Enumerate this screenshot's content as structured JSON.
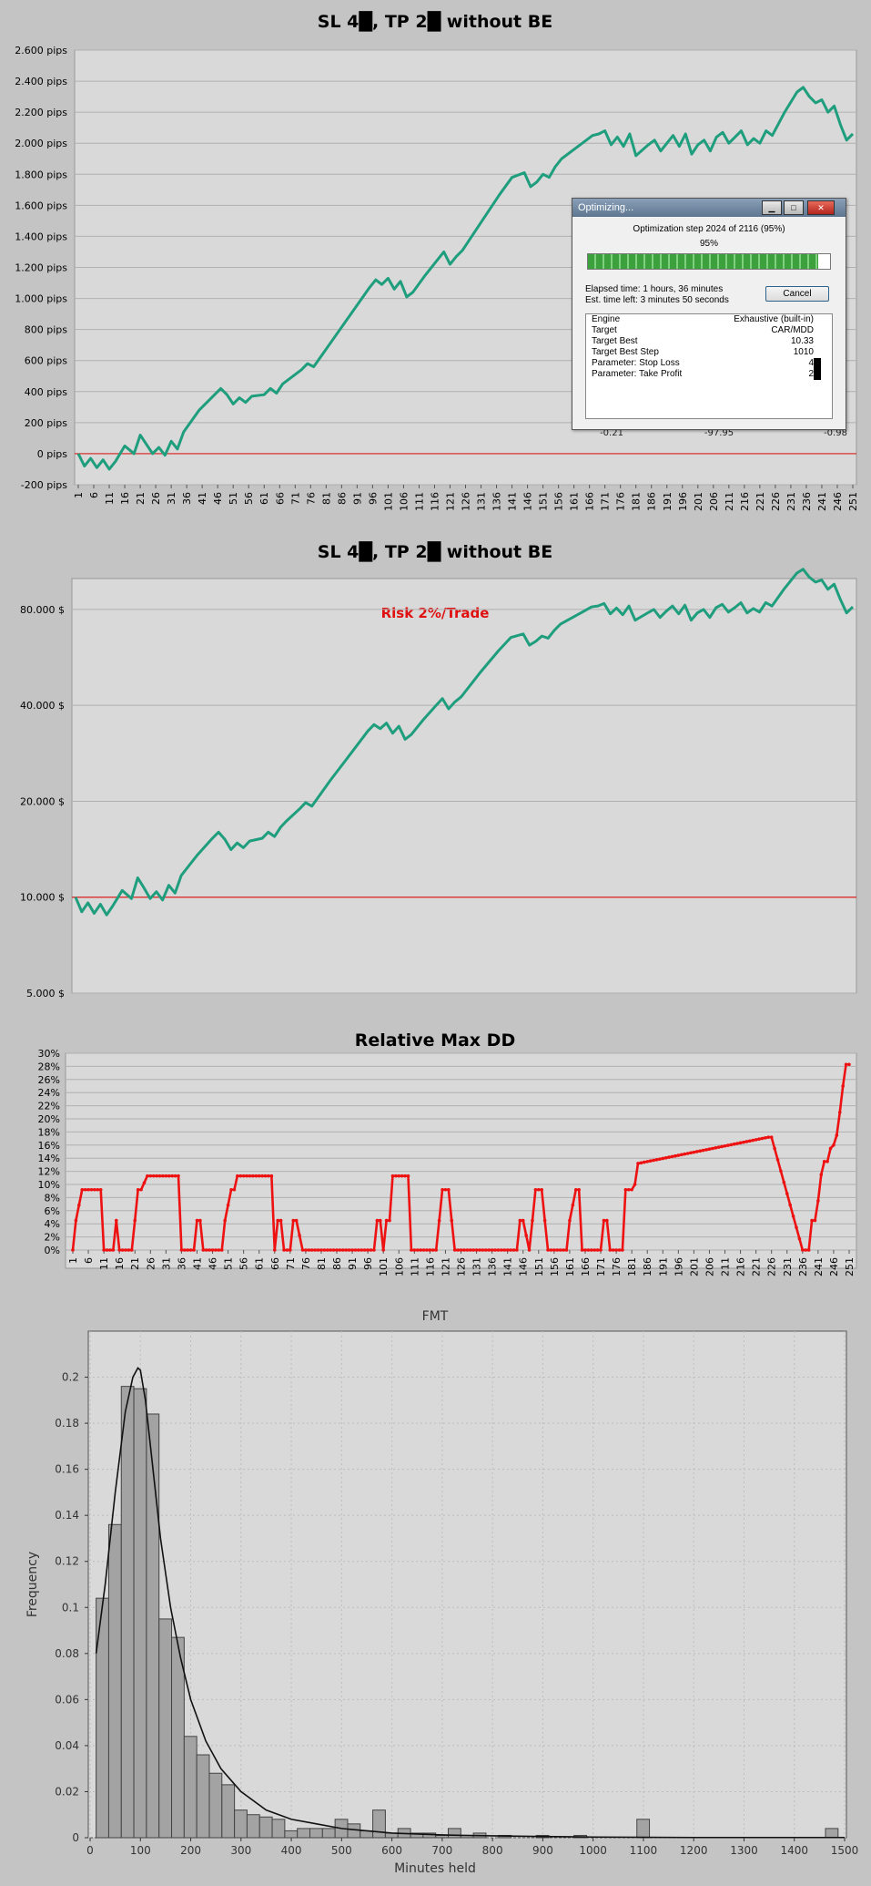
{
  "panels": {
    "pips": {
      "title": "SL 4█, TP 2█ without BE",
      "y_ticks": [
        "2.600 pips",
        "2.400 pips",
        "2.200 pips",
        "2.000 pips",
        "1.800 pips",
        "1.600 pips",
        "1.400 pips",
        "1.200 pips",
        "1.000 pips",
        "800 pips",
        "600 pips",
        "400 pips",
        "200 pips",
        "0 pips",
        "-200 pips"
      ]
    },
    "equity": {
      "title": "SL 4█, TP 2█ without BE",
      "annotation": "Risk 2%/Trade",
      "y_ticks": [
        "80.000 $",
        "40.000 $",
        "20.000 $",
        "10.000 $",
        "5.000 $"
      ]
    },
    "dd": {
      "title": "Relative Max DD",
      "y_ticks": [
        "30%",
        "28%",
        "26%",
        "24%",
        "22%",
        "20%",
        "18%",
        "16%",
        "14%",
        "12%",
        "10%",
        "8%",
        "6%",
        "4%",
        "2%",
        "0%"
      ]
    },
    "x_ticks": [
      "1",
      "6",
      "11",
      "16",
      "21",
      "26",
      "31",
      "36",
      "41",
      "46",
      "51",
      "56",
      "61",
      "66",
      "71",
      "76",
      "81",
      "86",
      "91",
      "96",
      "101",
      "106",
      "111",
      "116",
      "121",
      "126",
      "131",
      "136",
      "141",
      "146",
      "151",
      "156",
      "161",
      "166",
      "171",
      "176",
      "181",
      "186",
      "191",
      "196",
      "201",
      "206",
      "211",
      "216",
      "221",
      "226",
      "231",
      "236",
      "241",
      "246",
      "251"
    ]
  },
  "chart_data": [
    {
      "type": "line",
      "title": "SL 4█, TP 2█ without BE",
      "ylabel": "",
      "ylim": [
        -200,
        2600
      ],
      "grid": true,
      "x": [
        1,
        3,
        5,
        7,
        9,
        11,
        13,
        16,
        19,
        21,
        23,
        25,
        27,
        29,
        31,
        33,
        35,
        40,
        45,
        47,
        49,
        51,
        53,
        55,
        57,
        61,
        63,
        65,
        67,
        69,
        73,
        75,
        77,
        83,
        89,
        95,
        97,
        99,
        101,
        103,
        105,
        107,
        109,
        113,
        117,
        119,
        121,
        123,
        125,
        131,
        137,
        141,
        145,
        147,
        149,
        151,
        153,
        155,
        157,
        163,
        167,
        169,
        171,
        173,
        175,
        177,
        179,
        181,
        185,
        187,
        189,
        191,
        193,
        195,
        197,
        199,
        201,
        203,
        205,
        207,
        209,
        211,
        213,
        215,
        217,
        219,
        221,
        223,
        225,
        229,
        233,
        235,
        237,
        239,
        241,
        243,
        245,
        247,
        249,
        251
      ],
      "y": [
        0,
        -80,
        -30,
        -90,
        -40,
        -100,
        -50,
        50,
        0,
        120,
        60,
        0,
        40,
        -10,
        80,
        30,
        140,
        280,
        380,
        420,
        380,
        320,
        360,
        330,
        370,
        380,
        420,
        390,
        450,
        480,
        540,
        580,
        560,
        730,
        900,
        1070,
        1120,
        1090,
        1130,
        1060,
        1110,
        1010,
        1040,
        1150,
        1250,
        1300,
        1220,
        1270,
        1310,
        1490,
        1670,
        1780,
        1810,
        1720,
        1750,
        1800,
        1780,
        1850,
        1900,
        1990,
        2050,
        2060,
        2080,
        1990,
        2040,
        1980,
        2060,
        1920,
        1990,
        2020,
        1950,
        2000,
        2050,
        1980,
        2060,
        1930,
        1990,
        2020,
        1950,
        2040,
        2070,
        2000,
        2040,
        2080,
        1990,
        2030,
        2000,
        2080,
        2050,
        2200,
        2330,
        2360,
        2300,
        2260,
        2280,
        2200,
        2240,
        2120,
        2020,
        2060
      ],
      "baseline": 0
    },
    {
      "type": "line",
      "title": "SL 4█, TP 2█ without BE",
      "annotation": "Risk 2%/Trade",
      "yscale": "log",
      "ylim": [
        5000,
        100000
      ],
      "grid": true,
      "x": [
        1,
        3,
        5,
        7,
        9,
        11,
        13,
        16,
        19,
        21,
        23,
        25,
        27,
        29,
        31,
        33,
        35,
        40,
        45,
        47,
        49,
        51,
        53,
        55,
        57,
        61,
        63,
        65,
        67,
        69,
        73,
        75,
        77,
        83,
        89,
        95,
        97,
        99,
        101,
        103,
        105,
        107,
        109,
        113,
        117,
        119,
        121,
        123,
        125,
        131,
        137,
        141,
        145,
        147,
        149,
        151,
        153,
        155,
        157,
        163,
        167,
        169,
        171,
        173,
        175,
        177,
        179,
        181,
        185,
        187,
        189,
        191,
        193,
        195,
        197,
        199,
        201,
        203,
        205,
        207,
        209,
        211,
        213,
        215,
        217,
        219,
        221,
        223,
        225,
        229,
        233,
        235,
        237,
        239,
        241,
        243,
        245,
        247,
        249,
        251
      ],
      "y": [
        10000,
        9000,
        9600,
        8900,
        9500,
        8800,
        9400,
        10500,
        9900,
        11500,
        10700,
        9900,
        10400,
        9800,
        10900,
        10300,
        11700,
        13500,
        15300,
        16000,
        15200,
        14100,
        14800,
        14300,
        15000,
        15300,
        16000,
        15500,
        16600,
        17400,
        18900,
        19800,
        19300,
        23300,
        27800,
        33200,
        34800,
        33800,
        35200,
        32700,
        34400,
        31300,
        32400,
        36200,
        40000,
        42000,
        39000,
        41000,
        42500,
        50500,
        59300,
        65300,
        67000,
        61800,
        63500,
        66000,
        65000,
        68800,
        72000,
        77500,
        81500,
        82000,
        83500,
        77500,
        80800,
        77000,
        82000,
        74000,
        78000,
        80000,
        75500,
        79000,
        82000,
        77500,
        82500,
        74000,
        78000,
        80000,
        75500,
        81000,
        83000,
        78500,
        81000,
        84000,
        78000,
        80500,
        78500,
        84000,
        82000,
        93000,
        104000,
        107000,
        101000,
        97500,
        99000,
        92500,
        96000,
        86000,
        78000,
        81500
      ],
      "baseline": 10000
    },
    {
      "type": "line",
      "title": "Relative Max DD",
      "ylim": [
        0,
        30
      ],
      "grid": true,
      "x": [
        1,
        2,
        4,
        10,
        11,
        14,
        15,
        16,
        20,
        21,
        22,
        23,
        25,
        35,
        36,
        40,
        41,
        42,
        43,
        45,
        49,
        50,
        52,
        53,
        54,
        65,
        66,
        67,
        68,
        69,
        71,
        72,
        73,
        75,
        76,
        98,
        99,
        100,
        101,
        102,
        103,
        104,
        109,
        110,
        118,
        119,
        120,
        122,
        123,
        124,
        144,
        145,
        146,
        148,
        149,
        150,
        152,
        153,
        154,
        160,
        161,
        163,
        164,
        165,
        171,
        172,
        173,
        174,
        176,
        178,
        179,
        180,
        181,
        182,
        183,
        225,
        226,
        236,
        237,
        238,
        239,
        240,
        241,
        242,
        243,
        244,
        245,
        246,
        247,
        248,
        249,
        250,
        251
      ],
      "y": [
        0,
        4.5,
        9.2,
        9.2,
        0,
        0,
        4.5,
        0,
        0,
        4.5,
        9.2,
        9.2,
        11.3,
        11.3,
        0,
        0,
        4.5,
        4.5,
        0,
        0,
        0,
        4.5,
        9.2,
        9.2,
        11.3,
        11.3,
        0,
        4.5,
        4.5,
        0,
        0,
        4.5,
        4.5,
        0,
        0,
        0,
        4.5,
        4.5,
        0,
        4.5,
        4.5,
        11.3,
        11.3,
        0,
        0,
        4.5,
        9.2,
        9.2,
        4.5,
        0,
        0,
        4.5,
        4.5,
        0,
        4.5,
        9.2,
        9.2,
        4.5,
        0,
        0,
        4.5,
        9.2,
        9.2,
        0,
        0,
        4.5,
        4.5,
        0,
        0,
        0,
        9.2,
        9.2,
        9.2,
        10,
        13.2,
        17.2,
        17.2,
        0,
        0,
        0,
        4.5,
        4.5,
        7.5,
        11.5,
        13.5,
        13.5,
        15.5,
        16,
        17.5,
        21,
        25,
        28.3,
        28.3
      ]
    },
    {
      "type": "bar",
      "title": "FMT",
      "xlabel": "Minutes held",
      "ylabel": "Frequency",
      "xlim": [
        0,
        1500
      ],
      "ylim": [
        0,
        0.22
      ],
      "bin_width": 25,
      "y_ticks": [
        "0",
        "0.02",
        "0.04",
        "0.06",
        "0.08",
        "0.1",
        "0.12",
        "0.14",
        "0.16",
        "0.18",
        "0.2"
      ],
      "x_ticks": [
        "0",
        "100",
        "200",
        "300",
        "400",
        "500",
        "600",
        "700",
        "800",
        "900",
        "1000",
        "1100",
        "1200",
        "1300",
        "1400",
        "1500"
      ],
      "bins": [
        {
          "x0": 12,
          "y": 0.104
        },
        {
          "x0": 37,
          "y": 0.136
        },
        {
          "x0": 62,
          "y": 0.196
        },
        {
          "x0": 87,
          "y": 0.195
        },
        {
          "x0": 112,
          "y": 0.184
        },
        {
          "x0": 137,
          "y": 0.095
        },
        {
          "x0": 162,
          "y": 0.087
        },
        {
          "x0": 187,
          "y": 0.044
        },
        {
          "x0": 212,
          "y": 0.036
        },
        {
          "x0": 237,
          "y": 0.028
        },
        {
          "x0": 262,
          "y": 0.023
        },
        {
          "x0": 287,
          "y": 0.012
        },
        {
          "x0": 312,
          "y": 0.01
        },
        {
          "x0": 337,
          "y": 0.009
        },
        {
          "x0": 362,
          "y": 0.008
        },
        {
          "x0": 387,
          "y": 0.003
        },
        {
          "x0": 412,
          "y": 0.004
        },
        {
          "x0": 437,
          "y": 0.004
        },
        {
          "x0": 462,
          "y": 0.004
        },
        {
          "x0": 487,
          "y": 0.008
        },
        {
          "x0": 512,
          "y": 0.006
        },
        {
          "x0": 537,
          "y": 0.003
        },
        {
          "x0": 562,
          "y": 0.012
        },
        {
          "x0": 587,
          "y": 0.002
        },
        {
          "x0": 612,
          "y": 0.004
        },
        {
          "x0": 637,
          "y": 0.002
        },
        {
          "x0": 662,
          "y": 0.002
        },
        {
          "x0": 687,
          "y": 0.001
        },
        {
          "x0": 712,
          "y": 0.004
        },
        {
          "x0": 737,
          "y": 0.001
        },
        {
          "x0": 762,
          "y": 0.002
        },
        {
          "x0": 812,
          "y": 0.001
        },
        {
          "x0": 887,
          "y": 0.001
        },
        {
          "x0": 962,
          "y": 0.001
        },
        {
          "x0": 1087,
          "y": 0.008
        },
        {
          "x0": 1462,
          "y": 0.004
        }
      ],
      "curve": {
        "x": [
          12,
          30,
          50,
          70,
          85,
          95,
          100,
          110,
          125,
          140,
          160,
          180,
          200,
          230,
          260,
          300,
          350,
          400,
          450,
          500,
          600,
          700,
          800,
          900,
          1000,
          1100,
          1200,
          1300,
          1400,
          1500
        ],
        "y": [
          0.08,
          0.11,
          0.15,
          0.185,
          0.2,
          0.204,
          0.203,
          0.19,
          0.16,
          0.13,
          0.1,
          0.078,
          0.06,
          0.042,
          0.03,
          0.02,
          0.012,
          0.008,
          0.006,
          0.004,
          0.002,
          0.0012,
          0.0008,
          0.0005,
          0.0003,
          0.0002,
          0.0001,
          0.0001,
          0.0001,
          0.0001
        ]
      }
    }
  ],
  "optimizer": {
    "title": "Optimizing...",
    "step_text": "Optimization step 2024 of 2116 (95%)",
    "percent_text": "95%",
    "progress": 0.95,
    "elapsed": "Elapsed time: 1 hours, 36 minutes",
    "time_left": "Est. time left: 3 minutes 50 seconds",
    "cancel_label": "Cancel",
    "rows": [
      {
        "key": "Engine",
        "value": "Exhaustive (built-in)"
      },
      {
        "key": "Target",
        "value": "CAR/MDD"
      },
      {
        "key": "Target Best",
        "value": "10.33"
      },
      {
        "key": "Target Best Step",
        "value": "1010"
      },
      {
        "key": "Parameter: Stop Loss",
        "value": "4"
      },
      {
        "key": "Parameter: Take Profit",
        "value": "2"
      }
    ],
    "bg_fragments": [
      "-0.21",
      "-97.95",
      "-0.98"
    ]
  },
  "colors": {
    "equity_line": "#1f9e7e",
    "drawdown_line": "#ee1111",
    "baseline": "#dd2222",
    "plot_bg": "#d9d9d9",
    "panel_bg": "#c4c4c4",
    "annotation": "#e01010",
    "bar_fill": "#a3a3a3"
  }
}
